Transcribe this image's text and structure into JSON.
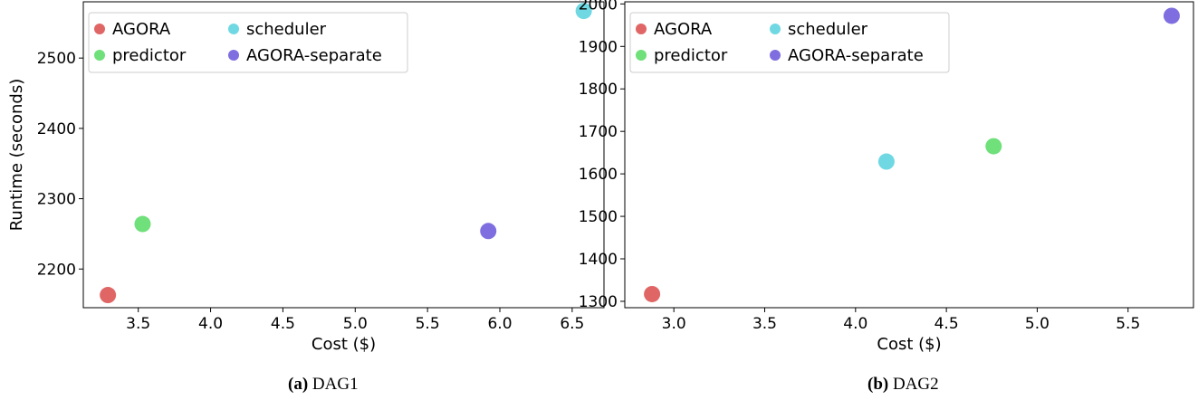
{
  "chart_data": [
    {
      "type": "scatter",
      "xlabel": "Cost ($)",
      "ylabel": "Runtime (seconds)",
      "xlim": [
        3.12,
        6.72
      ],
      "ylim": [
        2145,
        2580
      ],
      "xticks": [
        3.5,
        4.0,
        4.5,
        5.0,
        5.5,
        6.0,
        6.5
      ],
      "yticks": [
        2200,
        2300,
        2400,
        2500
      ],
      "legend_position": "top-left",
      "caption_label": "(a)",
      "caption_text": "DAG1",
      "series": [
        {
          "name": "AGORA",
          "color": "#e06666",
          "x": [
            3.29
          ],
          "y": [
            2163
          ]
        },
        {
          "name": "predictor",
          "color": "#6fe07a",
          "x": [
            3.53
          ],
          "y": [
            2264
          ]
        },
        {
          "name": "scheduler",
          "color": "#6fd8e2",
          "x": [
            6.58
          ],
          "y": [
            2567
          ]
        },
        {
          "name": "AGORA-separate",
          "color": "#7e6ee0",
          "x": [
            5.92
          ],
          "y": [
            2254
          ]
        }
      ]
    },
    {
      "type": "scatter",
      "xlabel": "Cost ($)",
      "ylabel": "",
      "xlim": [
        2.73,
        5.86
      ],
      "ylim": [
        1285,
        2005
      ],
      "xticks": [
        3.0,
        3.5,
        4.0,
        4.5,
        5.0,
        5.5
      ],
      "yticks": [
        1300,
        1400,
        1500,
        1600,
        1700,
        1800,
        1900,
        2000
      ],
      "legend_position": "top-left",
      "caption_label": "(b)",
      "caption_text": "DAG2",
      "series": [
        {
          "name": "AGORA",
          "color": "#e06666",
          "x": [
            2.88
          ],
          "y": [
            1317
          ]
        },
        {
          "name": "predictor",
          "color": "#6fe07a",
          "x": [
            4.76
          ],
          "y": [
            1665
          ]
        },
        {
          "name": "scheduler",
          "color": "#6fd8e2",
          "x": [
            4.17
          ],
          "y": [
            1629
          ]
        },
        {
          "name": "AGORA-separate",
          "color": "#7e6ee0",
          "x": [
            5.74
          ],
          "y": [
            1972
          ]
        }
      ]
    }
  ]
}
